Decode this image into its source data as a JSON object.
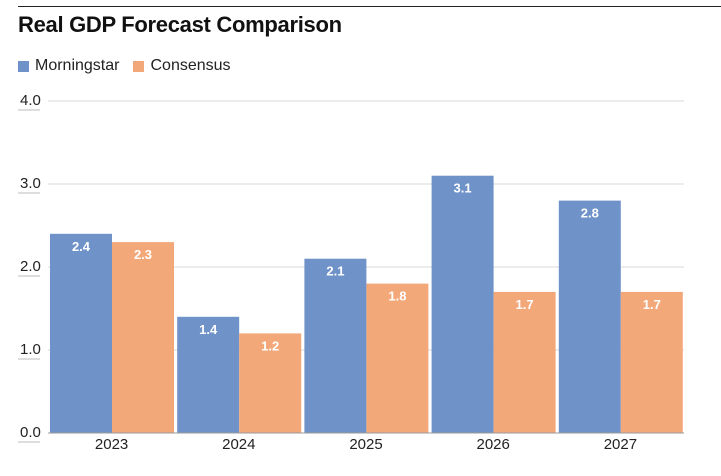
{
  "chart_data": {
    "type": "bar",
    "title": "Real GDP Forecast Comparison",
    "categories": [
      "2023",
      "2024",
      "2025",
      "2026",
      "2027"
    ],
    "series": [
      {
        "name": "Morningstar",
        "values": [
          2.4,
          1.4,
          2.1,
          3.1,
          2.8
        ],
        "color": "#6f93c9"
      },
      {
        "name": "Consensus",
        "values": [
          2.3,
          1.2,
          1.8,
          1.7,
          1.7
        ],
        "color": "#f3a87a"
      }
    ],
    "data_labels": [
      [
        "2.4",
        "1.4",
        "2.1",
        "3.1",
        "2.8"
      ],
      [
        "2.3",
        "1.2",
        "1.8",
        "1.7",
        "1.7"
      ]
    ],
    "yticks": [
      "0.0",
      "1.0",
      "2.0",
      "3.0",
      "4.0"
    ],
    "ylim": [
      0,
      4
    ],
    "grid": true,
    "legend_position": "top-left"
  }
}
